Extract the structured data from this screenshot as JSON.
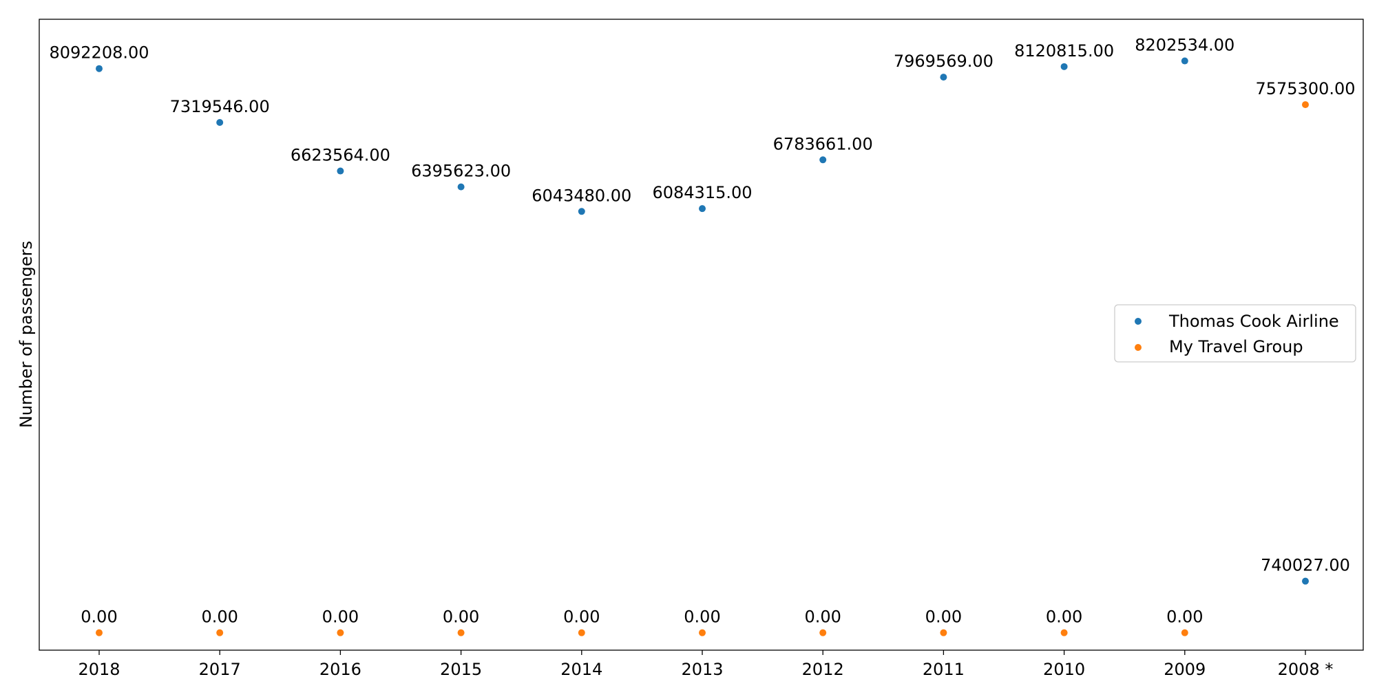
{
  "chart_data": {
    "type": "scatter",
    "title": "",
    "xlabel": "",
    "ylabel": "Number of passengers",
    "categories": [
      "2018",
      "2017",
      "2016",
      "2015",
      "2014",
      "2013",
      "2012",
      "2011",
      "2010",
      "2009",
      "2008 *"
    ],
    "ylim": [
      -250000,
      8800000
    ],
    "grid": false,
    "legend_position": "center-right",
    "series": [
      {
        "name": "Thomas Cook Airline",
        "color": "#1f77b4",
        "values": [
          8092208,
          7319546,
          6623564,
          6395623,
          6043480,
          6084315,
          6783661,
          7969569,
          8120815,
          8202534,
          740027
        ],
        "labels": [
          "8092208.00",
          "7319546.00",
          "6623564.00",
          "6395623.00",
          "6043480.00",
          "6084315.00",
          "6783661.00",
          "7969569.00",
          "8120815.00",
          "8202534.00",
          "740027.00"
        ]
      },
      {
        "name": "My Travel Group",
        "color": "#ff7f0e",
        "values": [
          0,
          0,
          0,
          0,
          0,
          0,
          0,
          0,
          0,
          0,
          7575300
        ],
        "labels": [
          "0.00",
          "0.00",
          "0.00",
          "0.00",
          "0.00",
          "0.00",
          "0.00",
          "0.00",
          "0.00",
          "0.00",
          "7575300.00"
        ]
      }
    ]
  }
}
